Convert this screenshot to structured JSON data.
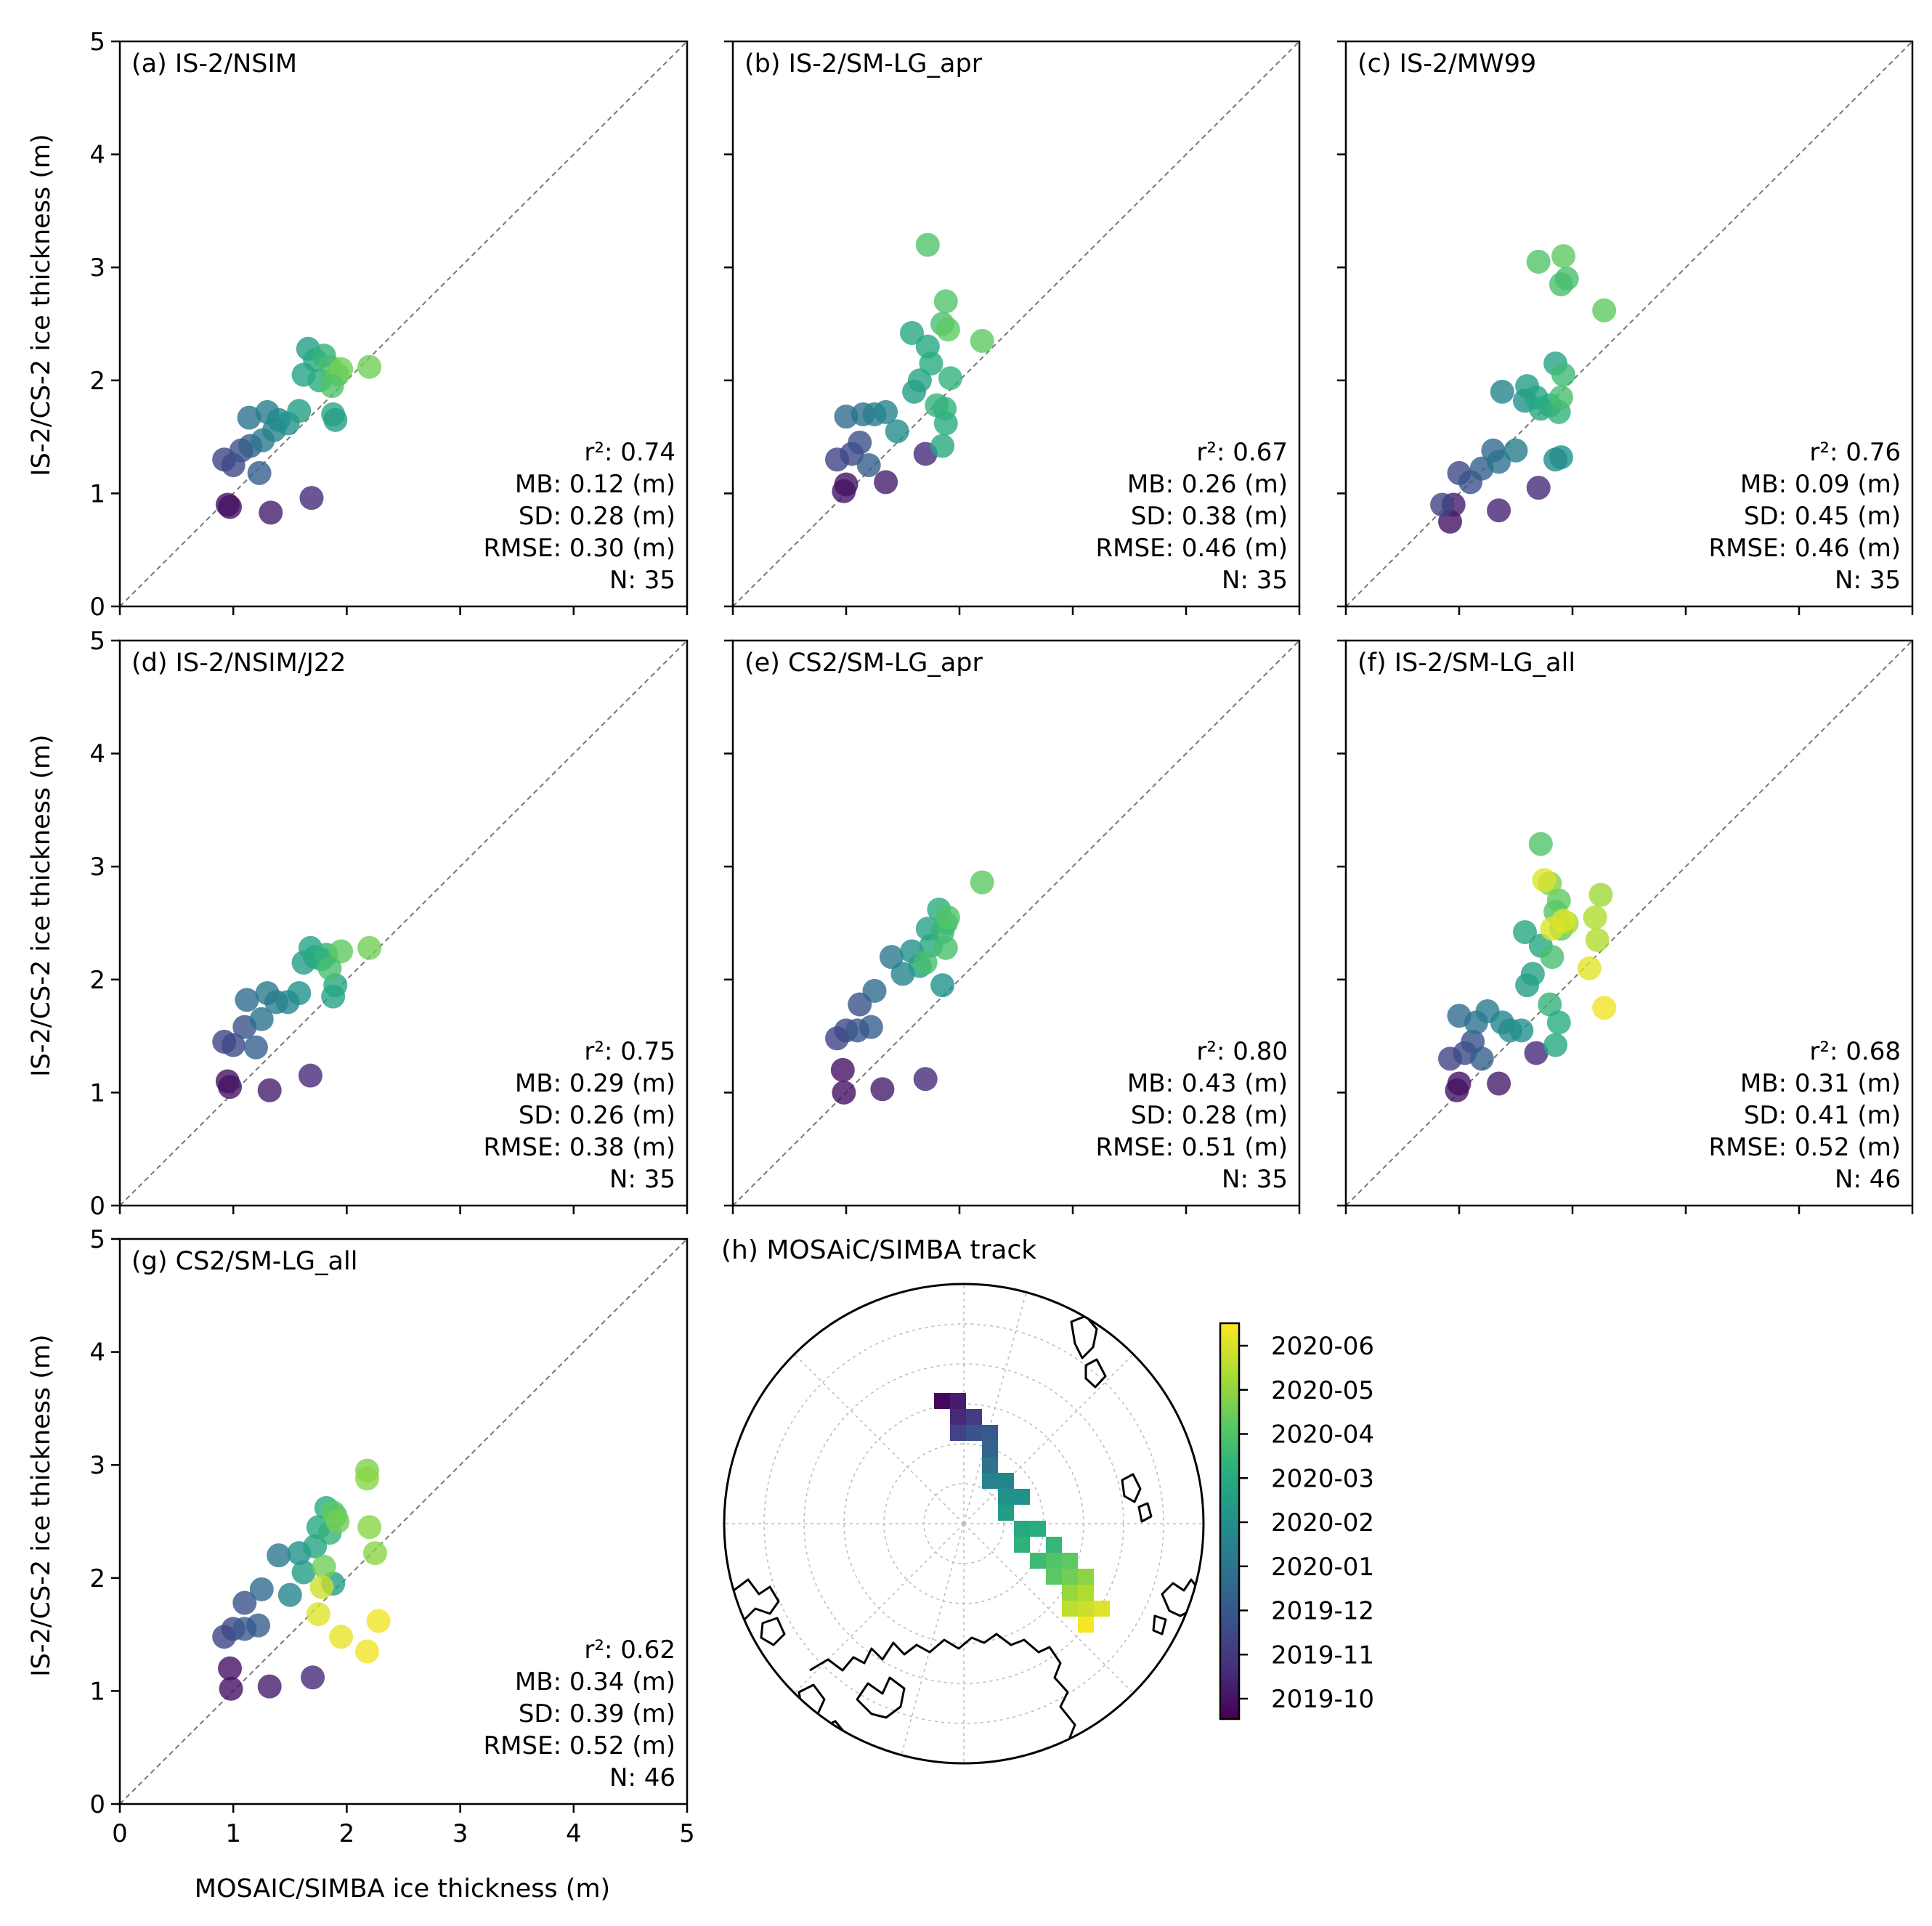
{
  "figure": {
    "ylabel": "IS-2/CS-2 ice thickness (m)",
    "xlabel": "MOSAIC/SIMBA ice thickness (m)",
    "ticks": [
      "0",
      "1",
      "2",
      "3",
      "4",
      "5"
    ],
    "map_title": "(h) MOSAiC/SIMBA track",
    "colormap": [
      "#440154",
      "#472d7b",
      "#3b528b",
      "#2c728e",
      "#21918c",
      "#28ae80",
      "#5ec962",
      "#addc30",
      "#fde725"
    ],
    "colorbar_labels": [
      "2020-06",
      "2020-05",
      "2020-04",
      "2020-03",
      "2020-02",
      "2020-01",
      "2019-12",
      "2019-11",
      "2019-10"
    ]
  },
  "chart_data": [
    {
      "type": "scatter",
      "title": "(a) IS-2/NSIM",
      "xlim": [
        0,
        5
      ],
      "ylim": [
        0,
        5
      ],
      "one_to_one_line": true,
      "stats": [
        "r²: 0.74",
        "MB: 0.12 (m)",
        "SD: 0.28 (m)",
        "RMSE: 0.30 (m)",
        "N: 35"
      ],
      "points": [
        [
          0.95,
          0.9,
          0.05
        ],
        [
          0.97,
          0.88,
          0.05
        ],
        [
          1.33,
          0.83,
          0.08
        ],
        [
          1.69,
          0.96,
          0.12
        ],
        [
          0.92,
          1.3,
          0.2
        ],
        [
          1.0,
          1.25,
          0.22
        ],
        [
          1.07,
          1.38,
          0.25
        ],
        [
          1.15,
          1.42,
          0.3
        ],
        [
          1.23,
          1.18,
          0.3
        ],
        [
          1.14,
          1.67,
          0.38
        ],
        [
          1.26,
          1.47,
          0.4
        ],
        [
          1.3,
          1.72,
          0.42
        ],
        [
          1.36,
          1.56,
          0.45
        ],
        [
          1.4,
          1.65,
          0.47
        ],
        [
          1.48,
          1.62,
          0.5
        ],
        [
          1.58,
          1.73,
          0.55
        ],
        [
          1.62,
          2.05,
          0.58
        ],
        [
          1.66,
          2.28,
          0.55
        ],
        [
          1.72,
          2.18,
          0.6
        ],
        [
          1.76,
          2.0,
          0.62
        ],
        [
          1.8,
          2.22,
          0.65
        ],
        [
          1.85,
          2.12,
          0.7
        ],
        [
          1.88,
          1.7,
          0.6
        ],
        [
          1.9,
          1.65,
          0.55
        ],
        [
          1.92,
          2.05,
          0.75
        ],
        [
          1.95,
          2.1,
          0.78
        ],
        [
          2.2,
          2.12,
          0.78
        ],
        [
          1.87,
          1.95,
          0.72
        ]
      ]
    },
    {
      "type": "scatter",
      "title": "(b) IS-2/SM-LG_apr",
      "xlim": [
        0,
        5
      ],
      "ylim": [
        0,
        5
      ],
      "one_to_one_line": true,
      "stats": [
        "r²: 0.67",
        "MB: 0.26 (m)",
        "SD: 0.38 (m)",
        "RMSE: 0.46 (m)",
        "N: 35"
      ],
      "points": [
        [
          0.98,
          1.02,
          0.05
        ],
        [
          1.0,
          1.08,
          0.05
        ],
        [
          1.35,
          1.1,
          0.08
        ],
        [
          1.7,
          1.35,
          0.12
        ],
        [
          0.92,
          1.3,
          0.2
        ],
        [
          1.05,
          1.35,
          0.22
        ],
        [
          1.12,
          1.45,
          0.25
        ],
        [
          1.2,
          1.25,
          0.3
        ],
        [
          1.0,
          1.68,
          0.35
        ],
        [
          1.15,
          1.7,
          0.38
        ],
        [
          1.25,
          1.7,
          0.42
        ],
        [
          1.35,
          1.72,
          0.45
        ],
        [
          1.45,
          1.55,
          0.48
        ],
        [
          1.6,
          1.9,
          0.55
        ],
        [
          1.65,
          2.0,
          0.57
        ],
        [
          1.72,
          2.3,
          0.6
        ],
        [
          1.75,
          2.15,
          0.62
        ],
        [
          1.58,
          2.42,
          0.6
        ],
        [
          1.8,
          1.78,
          0.65
        ],
        [
          1.85,
          2.5,
          0.7
        ],
        [
          1.88,
          2.7,
          0.72
        ],
        [
          1.9,
          2.45,
          0.75
        ],
        [
          1.85,
          1.42,
          0.6
        ],
        [
          1.88,
          1.62,
          0.62
        ],
        [
          1.92,
          2.02,
          0.65
        ],
        [
          2.2,
          2.35,
          0.75
        ],
        [
          1.72,
          3.2,
          0.72
        ],
        [
          1.87,
          1.75,
          0.65
        ]
      ]
    },
    {
      "type": "scatter",
      "title": "(c) IS-2/MW99",
      "xlim": [
        0,
        5
      ],
      "ylim": [
        0,
        5
      ],
      "one_to_one_line": true,
      "stats": [
        "r²: 0.76",
        "MB: 0.09 (m)",
        "SD: 0.45 (m)",
        "RMSE: 0.46 (m)",
        "N: 35"
      ],
      "points": [
        [
          0.92,
          0.75,
          0.05
        ],
        [
          0.95,
          0.9,
          0.08
        ],
        [
          1.35,
          0.85,
          0.1
        ],
        [
          1.7,
          1.05,
          0.12
        ],
        [
          0.85,
          0.9,
          0.2
        ],
        [
          1.0,
          1.18,
          0.22
        ],
        [
          1.1,
          1.1,
          0.25
        ],
        [
          1.2,
          1.22,
          0.3
        ],
        [
          1.3,
          1.38,
          0.35
        ],
        [
          1.35,
          1.28,
          0.38
        ],
        [
          1.5,
          1.38,
          0.42
        ],
        [
          1.38,
          1.9,
          0.45
        ],
        [
          1.58,
          1.82,
          0.5
        ],
        [
          1.6,
          1.95,
          0.55
        ],
        [
          1.68,
          1.85,
          0.58
        ],
        [
          1.72,
          1.75,
          0.6
        ],
        [
          1.8,
          1.78,
          0.62
        ],
        [
          1.85,
          2.15,
          0.58
        ],
        [
          1.88,
          1.72,
          0.65
        ],
        [
          1.9,
          1.85,
          0.7
        ],
        [
          1.92,
          2.05,
          0.68
        ],
        [
          1.9,
          1.32,
          0.5
        ],
        [
          1.85,
          1.3,
          0.48
        ],
        [
          1.7,
          3.05,
          0.72
        ],
        [
          1.92,
          3.1,
          0.75
        ],
        [
          1.9,
          2.85,
          0.7
        ],
        [
          1.95,
          2.9,
          0.7
        ],
        [
          2.28,
          2.62,
          0.75
        ]
      ]
    },
    {
      "type": "scatter",
      "title": "(d) IS-2/NSIM/J22",
      "xlim": [
        0,
        5
      ],
      "ylim": [
        0,
        5
      ],
      "one_to_one_line": true,
      "stats": [
        "r²: 0.75",
        "MB: 0.29 (m)",
        "SD: 0.26 (m)",
        "RMSE: 0.38 (m)",
        "N: 35"
      ],
      "points": [
        [
          0.95,
          1.1,
          0.05
        ],
        [
          0.97,
          1.05,
          0.05
        ],
        [
          1.32,
          1.02,
          0.08
        ],
        [
          1.68,
          1.15,
          0.12
        ],
        [
          0.92,
          1.45,
          0.2
        ],
        [
          1.0,
          1.42,
          0.22
        ],
        [
          1.1,
          1.58,
          0.25
        ],
        [
          1.2,
          1.4,
          0.3
        ],
        [
          1.12,
          1.82,
          0.35
        ],
        [
          1.25,
          1.65,
          0.38
        ],
        [
          1.3,
          1.88,
          0.4
        ],
        [
          1.38,
          1.8,
          0.42
        ],
        [
          1.48,
          1.8,
          0.45
        ],
        [
          1.58,
          1.88,
          0.5
        ],
        [
          1.62,
          2.15,
          0.55
        ],
        [
          1.68,
          2.28,
          0.58
        ],
        [
          1.72,
          2.2,
          0.6
        ],
        [
          1.78,
          2.18,
          0.62
        ],
        [
          1.82,
          2.22,
          0.65
        ],
        [
          1.88,
          1.85,
          0.58
        ],
        [
          1.9,
          1.95,
          0.6
        ],
        [
          1.95,
          2.25,
          0.75
        ],
        [
          2.2,
          2.28,
          0.78
        ],
        [
          1.85,
          2.1,
          0.7
        ]
      ]
    },
    {
      "type": "scatter",
      "title": "(e) CS2/SM-LG_apr",
      "xlim": [
        0,
        5
      ],
      "ylim": [
        0,
        5
      ],
      "one_to_one_line": true,
      "stats": [
        "r²: 0.80",
        "MB: 0.43 (m)",
        "SD: 0.28 (m)",
        "RMSE: 0.51 (m)",
        "N: 35"
      ],
      "points": [
        [
          0.98,
          1.0,
          0.05
        ],
        [
          0.97,
          1.2,
          0.05
        ],
        [
          1.32,
          1.03,
          0.08
        ],
        [
          1.7,
          1.12,
          0.12
        ],
        [
          0.92,
          1.48,
          0.2
        ],
        [
          1.0,
          1.55,
          0.22
        ],
        [
          1.12,
          1.78,
          0.25
        ],
        [
          1.22,
          1.58,
          0.3
        ],
        [
          1.25,
          1.9,
          0.35
        ],
        [
          1.1,
          1.55,
          0.28
        ],
        [
          1.4,
          2.2,
          0.4
        ],
        [
          1.5,
          2.05,
          0.45
        ],
        [
          1.58,
          2.25,
          0.5
        ],
        [
          1.65,
          2.12,
          0.55
        ],
        [
          1.72,
          2.45,
          0.58
        ],
        [
          1.75,
          2.3,
          0.6
        ],
        [
          1.82,
          2.62,
          0.62
        ],
        [
          1.85,
          2.42,
          0.65
        ],
        [
          1.88,
          2.5,
          0.68
        ],
        [
          1.85,
          1.95,
          0.5
        ],
        [
          1.88,
          2.28,
          0.7
        ],
        [
          1.9,
          2.55,
          0.72
        ],
        [
          2.2,
          2.86,
          0.75
        ],
        [
          1.7,
          2.15,
          0.7
        ]
      ]
    },
    {
      "type": "scatter",
      "title": "(f) IS-2/SM-LG_all",
      "xlim": [
        0,
        5
      ],
      "ylim": [
        0,
        5
      ],
      "one_to_one_line": true,
      "stats": [
        "r²: 0.68",
        "MB: 0.31 (m)",
        "SD: 0.41 (m)",
        "RMSE: 0.52 (m)",
        "N: 46"
      ],
      "points": [
        [
          0.98,
          1.02,
          0.05
        ],
        [
          1.0,
          1.08,
          0.05
        ],
        [
          1.35,
          1.08,
          0.08
        ],
        [
          1.68,
          1.35,
          0.12
        ],
        [
          0.92,
          1.3,
          0.2
        ],
        [
          1.05,
          1.35,
          0.22
        ],
        [
          1.12,
          1.45,
          0.25
        ],
        [
          1.2,
          1.3,
          0.3
        ],
        [
          1.0,
          1.68,
          0.35
        ],
        [
          1.15,
          1.62,
          0.38
        ],
        [
          1.25,
          1.72,
          0.42
        ],
        [
          1.38,
          1.62,
          0.45
        ],
        [
          1.45,
          1.55,
          0.48
        ],
        [
          1.55,
          1.55,
          0.5
        ],
        [
          1.6,
          1.95,
          0.55
        ],
        [
          1.65,
          2.05,
          0.57
        ],
        [
          1.72,
          2.3,
          0.6
        ],
        [
          1.58,
          2.42,
          0.6
        ],
        [
          1.8,
          1.78,
          0.65
        ],
        [
          1.85,
          1.42,
          0.6
        ],
        [
          1.88,
          1.62,
          0.62
        ],
        [
          1.82,
          2.2,
          0.7
        ],
        [
          1.85,
          2.6,
          0.72
        ],
        [
          1.88,
          2.7,
          0.75
        ],
        [
          1.9,
          2.45,
          0.75
        ],
        [
          1.72,
          3.2,
          0.72
        ],
        [
          1.8,
          2.85,
          0.8
        ],
        [
          1.95,
          2.5,
          0.85
        ],
        [
          2.25,
          2.75,
          0.85
        ],
        [
          2.2,
          2.55,
          0.88
        ],
        [
          2.22,
          2.35,
          0.88
        ],
        [
          1.75,
          2.88,
          0.95
        ],
        [
          1.82,
          2.45,
          0.95
        ],
        [
          1.92,
          2.52,
          0.95
        ],
        [
          2.15,
          2.1,
          0.96
        ],
        [
          2.28,
          1.75,
          0.98
        ]
      ]
    },
    {
      "type": "scatter",
      "title": "(g) CS2/SM-LG_all",
      "xlim": [
        0,
        5
      ],
      "ylim": [
        0,
        5
      ],
      "one_to_one_line": true,
      "stats": [
        "r²: 0.62",
        "MB: 0.34 (m)",
        "SD: 0.39 (m)",
        "RMSE: 0.52 (m)",
        "N: 46"
      ],
      "points": [
        [
          0.98,
          1.02,
          0.05
        ],
        [
          0.97,
          1.2,
          0.05
        ],
        [
          1.32,
          1.04,
          0.08
        ],
        [
          1.7,
          1.12,
          0.12
        ],
        [
          0.92,
          1.48,
          0.2
        ],
        [
          1.0,
          1.55,
          0.22
        ],
        [
          1.1,
          1.78,
          0.25
        ],
        [
          1.22,
          1.58,
          0.3
        ],
        [
          1.25,
          1.9,
          0.35
        ],
        [
          1.1,
          1.55,
          0.28
        ],
        [
          1.4,
          2.2,
          0.4
        ],
        [
          1.5,
          1.85,
          0.45
        ],
        [
          1.58,
          2.22,
          0.5
        ],
        [
          1.62,
          2.05,
          0.55
        ],
        [
          1.72,
          2.28,
          0.58
        ],
        [
          1.75,
          2.45,
          0.6
        ],
        [
          1.82,
          2.62,
          0.62
        ],
        [
          1.85,
          2.4,
          0.65
        ],
        [
          1.88,
          1.95,
          0.55
        ],
        [
          1.9,
          2.55,
          0.7
        ],
        [
          1.88,
          2.58,
          0.75
        ],
        [
          1.92,
          2.5,
          0.78
        ],
        [
          2.18,
          2.95,
          0.8
        ],
        [
          2.18,
          2.88,
          0.82
        ],
        [
          2.2,
          2.45,
          0.82
        ],
        [
          2.25,
          2.22,
          0.82
        ],
        [
          1.8,
          2.1,
          0.78
        ],
        [
          1.78,
          1.92,
          0.92
        ],
        [
          1.75,
          1.68,
          0.95
        ],
        [
          1.95,
          1.48,
          0.97
        ],
        [
          2.18,
          1.35,
          0.98
        ],
        [
          2.28,
          1.62,
          0.98
        ]
      ]
    }
  ]
}
